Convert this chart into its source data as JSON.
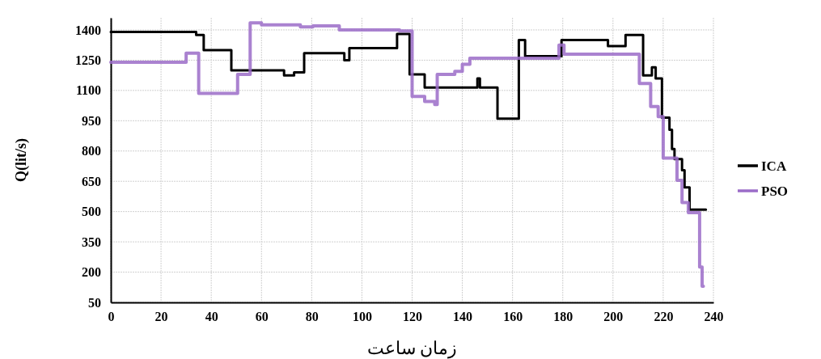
{
  "chart_data": {
    "type": "step",
    "xlabel": "زمان ساعت",
    "ylabel": "Q(lit/s)",
    "xlim": [
      0,
      240
    ],
    "xticks": [
      0,
      20,
      40,
      60,
      80,
      100,
      120,
      140,
      160,
      180,
      200,
      220,
      240
    ],
    "ylim": [
      50,
      1460
    ],
    "yticks": [
      50,
      200,
      350,
      500,
      650,
      800,
      950,
      1100,
      1250,
      1400
    ],
    "grid": true,
    "legend": "right",
    "marker": "none",
    "line_style": "solid",
    "series": [
      {
        "name": "ICA",
        "color": "#000000",
        "x": [
          0,
          34,
          37,
          48,
          69,
          73,
          77,
          93,
          95,
          114,
          119,
          125,
          146,
          147,
          154,
          162.5,
          165,
          179.5,
          198,
          205,
          212,
          215.5,
          217,
          219.5,
          222.5,
          223.5,
          224.5,
          227.5,
          228.5,
          230.5,
          237
        ],
        "values": [
          1390,
          1375,
          1300,
          1200,
          1175,
          1190,
          1285,
          1250,
          1310,
          1380,
          1180,
          1115,
          1160,
          1115,
          960,
          1350,
          1270,
          1350,
          1320,
          1375,
          1175,
          1215,
          1160,
          965,
          905,
          810,
          760,
          705,
          620,
          510,
          510
        ]
      },
      {
        "name": "PSO",
        "color": "#9b6cc8",
        "x": [
          0,
          30,
          35,
          50.5,
          55.5,
          60,
          75.5,
          80.5,
          91,
          115,
          120,
          125,
          129,
          130,
          137,
          140,
          143,
          178.5,
          180.5,
          210.5,
          215,
          218,
          220,
          225.5,
          227.5,
          230,
          234.5,
          235.5,
          236
        ],
        "values": [
          1240,
          1285,
          1085,
          1180,
          1435,
          1425,
          1415,
          1420,
          1400,
          1395,
          1070,
          1045,
          1030,
          1180,
          1195,
          1230,
          1260,
          1325,
          1280,
          1135,
          1020,
          970,
          765,
          655,
          545,
          495,
          225,
          130,
          130
        ]
      }
    ]
  }
}
